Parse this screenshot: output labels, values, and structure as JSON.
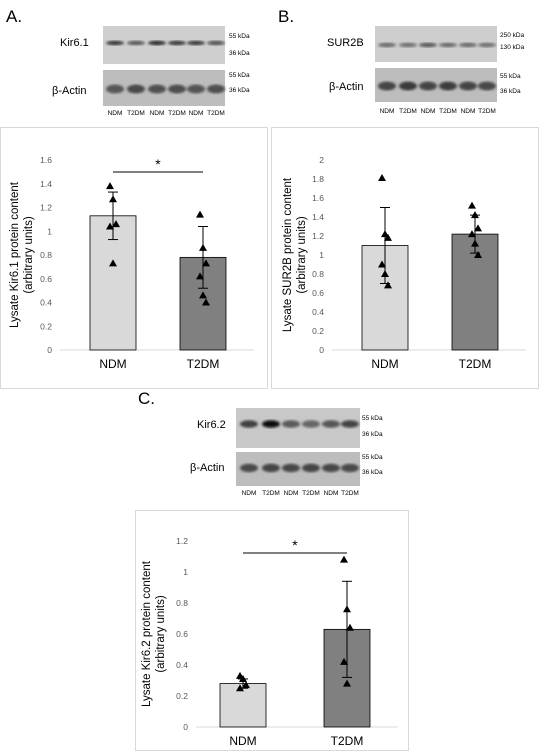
{
  "panels": [
    {
      "letter": "A.",
      "blot": {
        "target": "Kir6.1",
        "loading": "β-Actin",
        "target_markers": [
          "55 kDa",
          "36 kDa"
        ],
        "loading_markers": [
          "55 kDa",
          "36 kDa"
        ],
        "lanes": [
          "NDM",
          "T2DM",
          "NDM",
          "T2DM",
          "NDM",
          "T2DM"
        ]
      }
    },
    {
      "letter": "B.",
      "blot": {
        "target": "SUR2B",
        "loading": "β-Actin",
        "target_markers": [
          "250 kDa",
          "130 kDa"
        ],
        "loading_markers": [
          "55 kDa",
          "36 kDa"
        ],
        "lanes": [
          "NDM",
          "T2DM",
          "NDM",
          "T2DM",
          "NDM",
          "T2DM"
        ]
      }
    },
    {
      "letter": "C.",
      "blot": {
        "target": "Kir6.2",
        "loading": "β-Actin",
        "target_markers": [
          "55 kDa",
          "36 kDa"
        ],
        "loading_markers": [
          "55 kDa",
          "36 kDa"
        ],
        "lanes": [
          "NDM",
          "T2DM",
          "NDM",
          "T2DM",
          "NDM",
          "T2DM"
        ]
      }
    }
  ],
  "chart_data": [
    {
      "type": "bar",
      "panel": "A",
      "title": "",
      "ylabel": "Lysate Kir6.1 protein content (arbitrary units)",
      "ylabel_lines": [
        "Lysate Kir6.1 protein content",
        "(arbitrary units)"
      ],
      "categories": [
        "NDM",
        "T2DM"
      ],
      "values": [
        1.13,
        0.78
      ],
      "errors": [
        0.2,
        0.26
      ],
      "points": [
        [
          1.38,
          1.27,
          1.06,
          1.04,
          0.73
        ],
        [
          1.14,
          0.86,
          0.73,
          0.62,
          0.46,
          0.4
        ]
      ],
      "ylim": [
        0,
        1.6
      ],
      "yticks": [
        "0",
        "0.2",
        "0.4",
        "0.6",
        "0.8",
        "1",
        "1.2",
        "1.4",
        "1.6"
      ],
      "bar_colors": [
        "#d9d9d9",
        "#808080"
      ],
      "significance": "*",
      "grid": false
    },
    {
      "type": "bar",
      "panel": "B",
      "title": "",
      "ylabel": "Lysate SUR2B protein content (arbitrary units)",
      "ylabel_lines": [
        "Lysate SUR2B protein content",
        "(arbitrary units)"
      ],
      "categories": [
        "NDM",
        "T2DM"
      ],
      "values": [
        1.1,
        1.22
      ],
      "errors": [
        0.4,
        0.2
      ],
      "points": [
        [
          1.81,
          1.22,
          1.18,
          0.9,
          0.8,
          0.68
        ],
        [
          1.52,
          1.42,
          1.28,
          1.22,
          1.12,
          1.0
        ]
      ],
      "ylim": [
        0,
        2
      ],
      "yticks": [
        "0",
        "0.2",
        "0.4",
        "0.6",
        "0.8",
        "1",
        "1.2",
        "1.4",
        "1.6",
        "1.8",
        "2"
      ],
      "bar_colors": [
        "#d9d9d9",
        "#808080"
      ],
      "significance": "",
      "grid": false
    },
    {
      "type": "bar",
      "panel": "C",
      "title": "",
      "ylabel": "Lysate Kir6.2 protein content (arbitrary units)",
      "ylabel_lines": [
        "Lysate Kir6.2 protein content",
        "(arbitrary units)"
      ],
      "categories": [
        "NDM",
        "T2DM"
      ],
      "values": [
        0.28,
        0.63
      ],
      "errors": [
        0.03,
        0.31
      ],
      "points": [
        [
          0.33,
          0.31,
          0.27,
          0.25
        ],
        [
          1.08,
          0.76,
          0.64,
          0.42,
          0.28
        ]
      ],
      "ylim": [
        0,
        1.2
      ],
      "yticks": [
        "0",
        "0.2",
        "0.4",
        "0.6",
        "0.8",
        "1",
        "1.2"
      ],
      "bar_colors": [
        "#d9d9d9",
        "#808080"
      ],
      "significance": "*",
      "grid": false
    }
  ]
}
